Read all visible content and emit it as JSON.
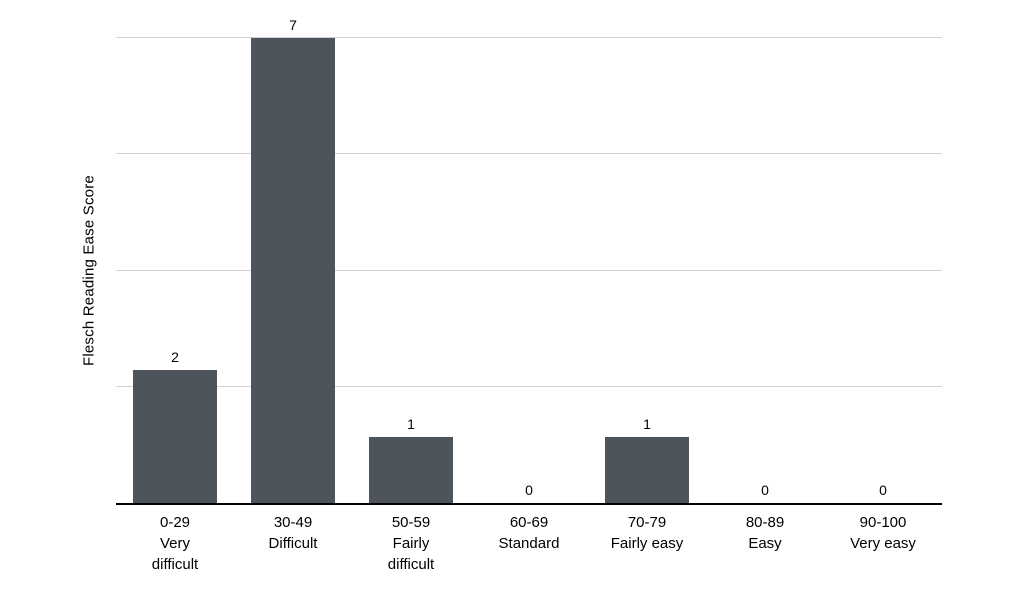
{
  "chart_data": {
    "type": "bar",
    "title": "",
    "xlabel": "",
    "ylabel": "Flesch Reading Ease Score",
    "categories": [
      {
        "range": "0-29",
        "level": "Very difficult"
      },
      {
        "range": "30-49",
        "level": "Difficult"
      },
      {
        "range": "50-59",
        "level": "Fairly difficult"
      },
      {
        "range": "60-69",
        "level": "Standard"
      },
      {
        "range": "70-79",
        "level": "Fairly easy"
      },
      {
        "range": "80-89",
        "level": "Easy"
      },
      {
        "range": "90-100",
        "level": "Very easy"
      }
    ],
    "values": [
      2,
      7,
      1,
      0,
      1,
      0,
      0
    ],
    "value_labels": [
      "2",
      "7",
      "1",
      "0",
      "1",
      "0",
      "0"
    ],
    "ylim": [
      0,
      7
    ],
    "gridline_values": [
      1.75,
      3.5,
      5.25,
      7
    ],
    "grid": "horizontal",
    "legend": "none",
    "y_tick_labels_shown": false,
    "colors": {
      "bar": "#4e545c",
      "gridline": "#d2d2d2",
      "axis_line": "#000000",
      "text": "#000000",
      "background": "#ffffff"
    }
  }
}
